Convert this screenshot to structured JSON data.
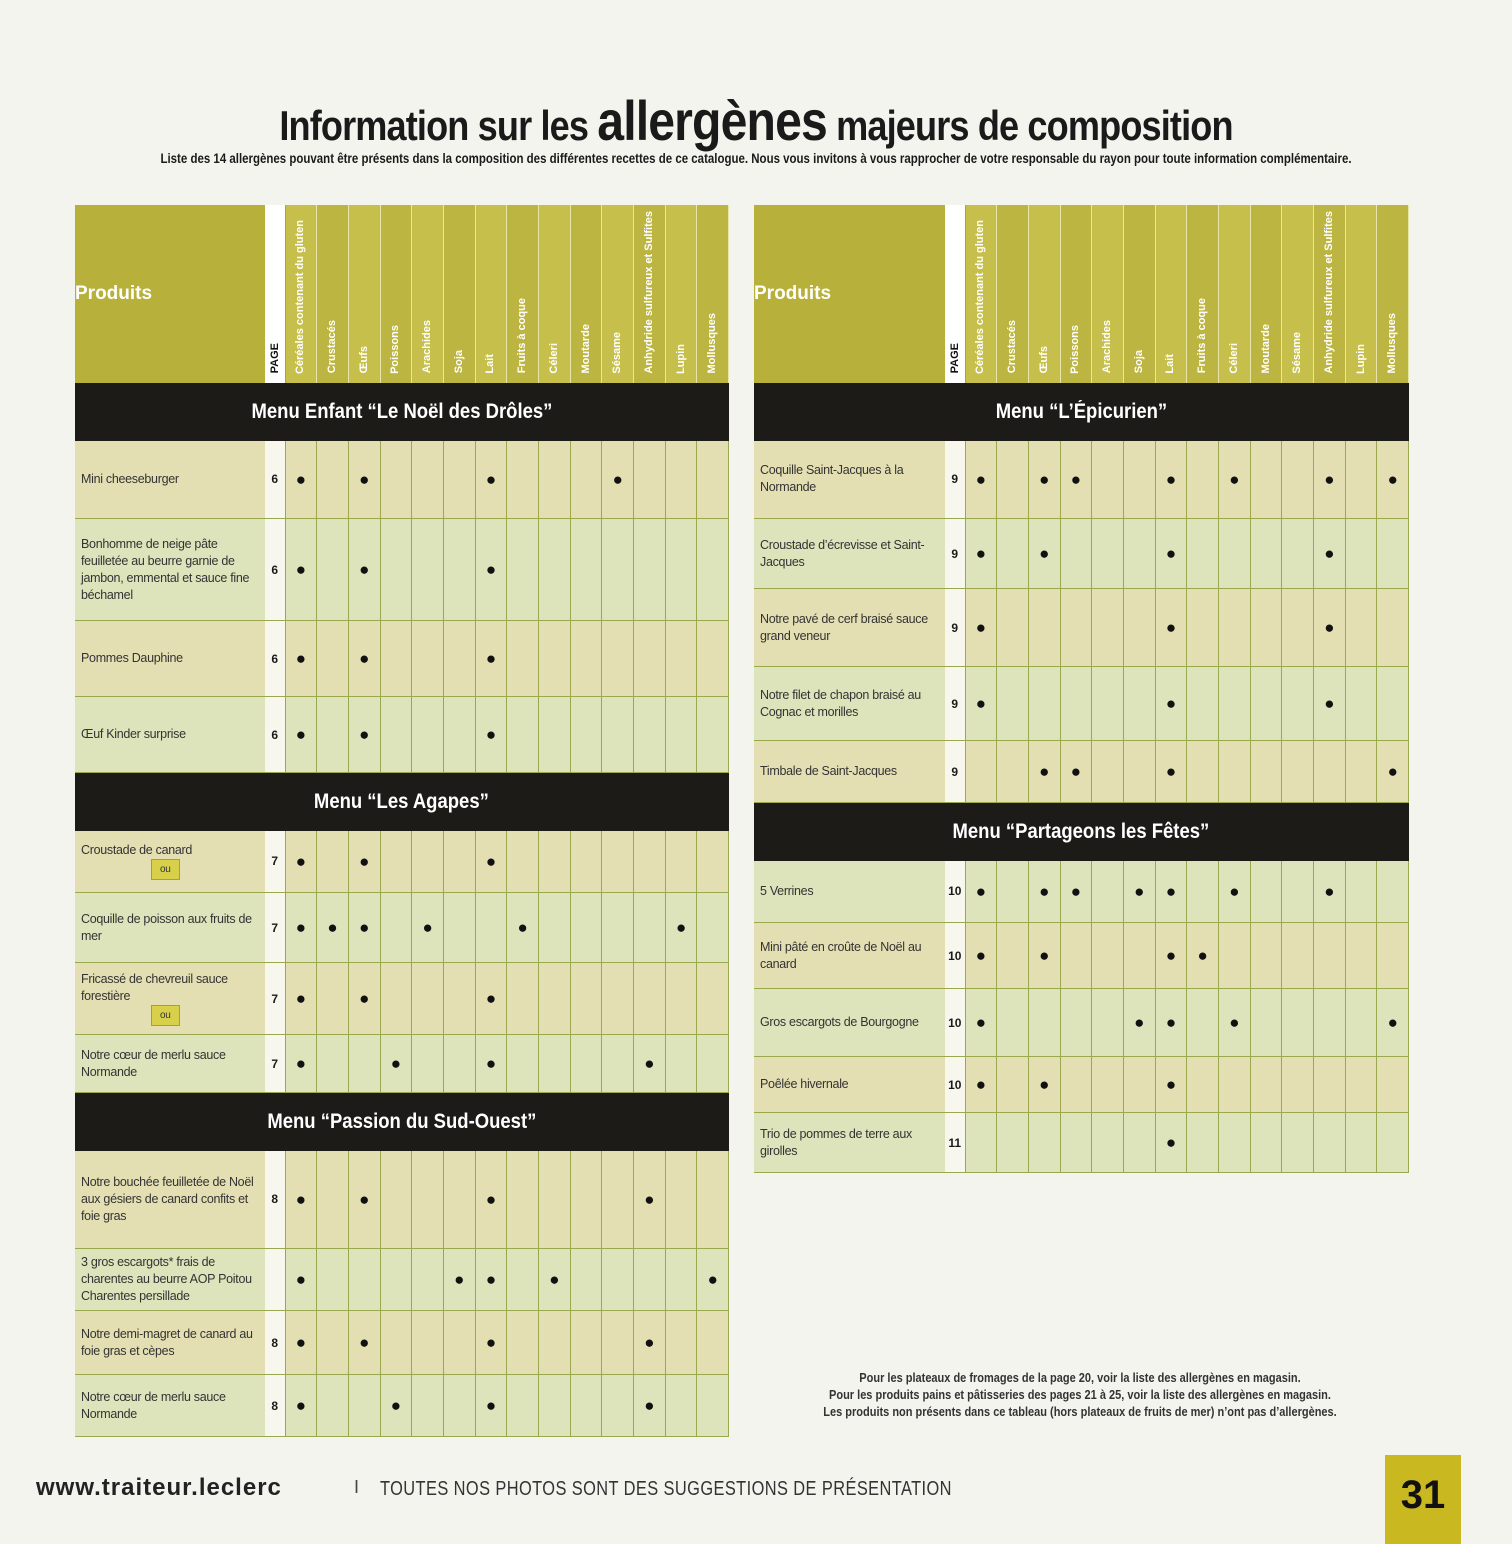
{
  "title": {
    "pre": "Information sur les ",
    "main": "allergènes",
    "post": " majeurs de composition"
  },
  "subtitle": "Liste des 14 allergènes pouvant être présents dans la composition des différentes recettes de ce catalogue. Nous vous invitons à vous rapprocher de votre responsable du rayon pour toute information complémentaire.",
  "header": {
    "produits_label": "Produits",
    "page_label": "PAGE",
    "allergens": [
      "Céréales contenant du gluten",
      "Crustacés",
      "Œufs",
      "Poissons",
      "Arachides",
      "Soja",
      "Lait",
      "Fruits à coque",
      "Céleri",
      "Moutarde",
      "Sésame",
      "Anhydride sulfureux et Sulfites",
      "Lupin",
      "Mollusques"
    ]
  },
  "mark": "●",
  "ou_label": "ou",
  "left_table": [
    {
      "menu": "Menu Enfant “Le Noël des Drôles”",
      "items": [
        {
          "name": "Mini cheeseburger",
          "page": "6",
          "a": [
            0,
            2,
            6,
            10
          ],
          "h": 78
        },
        {
          "name": "Bonhomme de neige pâte feuilletée au beurre garnie de jambon, emmental et sauce fine béchamel",
          "page": "6",
          "a": [
            0,
            2,
            6
          ],
          "h": 102
        },
        {
          "name": "Pommes Dauphine",
          "page": "6",
          "a": [
            0,
            2,
            6
          ],
          "h": 76
        },
        {
          "name": "Œuf Kinder surprise",
          "page": "6",
          "a": [
            0,
            2,
            6
          ],
          "h": 76
        }
      ]
    },
    {
      "menu": "Menu “Les Agapes”",
      "items": [
        {
          "name": "Croustade de canard",
          "page": "7",
          "a": [
            0,
            2,
            6
          ],
          "h": 62,
          "ou": true
        },
        {
          "name": "Coquille de poisson aux fruits de mer",
          "page": "7",
          "a": [
            0,
            1,
            2,
            4,
            7,
            12
          ],
          "h": 70
        },
        {
          "name": "Fricassé de chevreuil sauce forestière",
          "page": "7",
          "a": [
            0,
            2,
            6
          ],
          "h": 72,
          "ou": true
        },
        {
          "name": "Notre cœur de merlu sauce Normande",
          "page": "7",
          "a": [
            0,
            3,
            6,
            11
          ],
          "h": 58
        }
      ]
    },
    {
      "menu": "Menu “Passion du Sud-Ouest”",
      "items": [
        {
          "name": "Notre bouchée feuilletée de Noël aux gésiers de canard confits et foie gras",
          "page": "8",
          "a": [
            0,
            2,
            6,
            11
          ],
          "h": 98
        },
        {
          "name": "3 gros escargots* frais de charentes au beurre AOP Poitou Charentes persillade",
          "page": "",
          "a": [
            0,
            5,
            6,
            8,
            13
          ],
          "h": 62
        },
        {
          "name": "Notre demi-magret de canard au foie gras et cèpes",
          "page": "8",
          "a": [
            0,
            2,
            6,
            11
          ],
          "h": 64
        },
        {
          "name": "Notre cœur de merlu sauce Normande",
          "page": "8",
          "a": [
            0,
            3,
            6,
            11
          ],
          "h": 62
        }
      ]
    }
  ],
  "right_table": [
    {
      "menu": "Menu “L’Épicurien”",
      "items": [
        {
          "name": "Coquille Saint-Jacques à la Normande",
          "page": "9",
          "a": [
            0,
            2,
            3,
            6,
            8,
            11,
            13
          ],
          "h": 78
        },
        {
          "name": "Croustade d’écrevisse et Saint-Jacques",
          "page": "9",
          "a": [
            0,
            2,
            6,
            11
          ],
          "h": 70
        },
        {
          "name": "Notre pavé de cerf braisé sauce grand veneur",
          "page": "9",
          "a": [
            0,
            6,
            11
          ],
          "h": 78
        },
        {
          "name": "Notre filet de chapon braisé au Cognac et morilles",
          "page": "9",
          "a": [
            0,
            6,
            11
          ],
          "h": 74
        },
        {
          "name": "Timbale de Saint-Jacques",
          "page": "9",
          "a": [
            2,
            3,
            6,
            13
          ],
          "h": 62
        }
      ]
    },
    {
      "menu": "Menu “Partageons les Fêtes”",
      "items": [
        {
          "name": "5 Verrines",
          "page": "10",
          "a": [
            0,
            2,
            3,
            5,
            6,
            8,
            11
          ],
          "h": 62
        },
        {
          "name": "Mini pâté en croûte de Noël au canard",
          "page": "10",
          "a": [
            0,
            2,
            6,
            7
          ],
          "h": 66
        },
        {
          "name": "Gros escargots de Bourgogne",
          "page": "10",
          "a": [
            0,
            5,
            6,
            8,
            13
          ],
          "h": 68
        },
        {
          "name": "Poêlée hivernale",
          "page": "10",
          "a": [
            0,
            2,
            6
          ],
          "h": 56
        },
        {
          "name": "Trio de pommes de terre aux girolles",
          "page": "11",
          "a": [
            6
          ],
          "h": 60
        }
      ]
    }
  ],
  "note_lines": [
    "Pour les plateaux de fromages de la page 20, voir la liste des allergènes en magasin.",
    "Pour les produits pains et pâtisseries des pages 21 à 25, voir la liste des allergènes en magasin.",
    "Les produits non présents dans ce tableau (hors plateaux de fruits de mer) n’ont pas d’allergènes."
  ],
  "footer": {
    "url": "www.traiteur.leclerc",
    "separator": "I",
    "tagline": "TOUTES NOS PHOTOS SONT DES SUGGESTIONS DE PRÉSENTATION",
    "page_number": "31"
  }
}
